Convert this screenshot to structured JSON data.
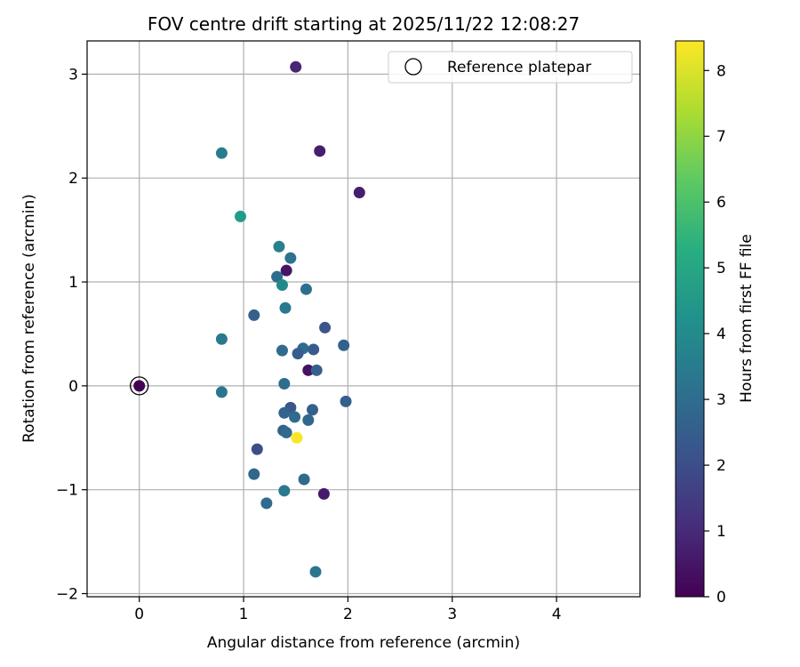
{
  "chart_data": {
    "type": "scatter",
    "title": "FOV centre drift starting at 2025/11/22 12:08:27",
    "xlabel": "Angular distance from reference (arcmin)",
    "ylabel": "Rotation from reference (arcmin)",
    "xlim": [
      -0.5,
      4.8
    ],
    "ylim": [
      -2.03,
      3.32
    ],
    "xticks": [
      0,
      1,
      2,
      3,
      4
    ],
    "yticks": [
      -2,
      -1,
      0,
      1,
      2,
      3
    ],
    "grid": true,
    "legend": {
      "position": "top-right",
      "entries": [
        "Reference platepar"
      ]
    },
    "colorbar": {
      "label": "Hours from first FF file",
      "min": 0,
      "max": 8.45,
      "ticks": [
        0,
        1,
        2,
        3,
        4,
        5,
        6,
        7,
        8
      ],
      "colormap": "viridis"
    },
    "reference": {
      "x": 0,
      "y": 0,
      "hours": 0,
      "label": "Reference platepar"
    },
    "points": [
      {
        "x": 1.5,
        "y": 3.07,
        "hours": 0.9
      },
      {
        "x": 1.73,
        "y": 2.26,
        "hours": 0.7
      },
      {
        "x": 0.79,
        "y": 2.24,
        "hours": 3.5
      },
      {
        "x": 2.11,
        "y": 1.86,
        "hours": 0.7
      },
      {
        "x": 0.97,
        "y": 1.63,
        "hours": 4.6
      },
      {
        "x": 1.34,
        "y": 1.34,
        "hours": 3.6
      },
      {
        "x": 1.45,
        "y": 1.23,
        "hours": 3.2
      },
      {
        "x": 1.41,
        "y": 1.11,
        "hours": 0.5
      },
      {
        "x": 1.32,
        "y": 1.05,
        "hours": 3.0
      },
      {
        "x": 1.37,
        "y": 0.97,
        "hours": 4.0
      },
      {
        "x": 1.6,
        "y": 0.93,
        "hours": 3.1
      },
      {
        "x": 1.4,
        "y": 0.75,
        "hours": 3.4
      },
      {
        "x": 1.1,
        "y": 0.68,
        "hours": 2.6
      },
      {
        "x": 1.78,
        "y": 0.56,
        "hours": 2.2
      },
      {
        "x": 0.79,
        "y": 0.45,
        "hours": 3.4
      },
      {
        "x": 1.96,
        "y": 0.39,
        "hours": 2.6
      },
      {
        "x": 1.57,
        "y": 0.36,
        "hours": 2.9
      },
      {
        "x": 1.37,
        "y": 0.34,
        "hours": 2.9
      },
      {
        "x": 1.67,
        "y": 0.35,
        "hours": 2.4
      },
      {
        "x": 1.52,
        "y": 0.31,
        "hours": 2.5
      },
      {
        "x": 1.62,
        "y": 0.15,
        "hours": 0.4
      },
      {
        "x": 1.7,
        "y": 0.15,
        "hours": 2.6
      },
      {
        "x": 1.39,
        "y": 0.02,
        "hours": 3.0
      },
      {
        "x": 0.79,
        "y": -0.06,
        "hours": 3.3
      },
      {
        "x": 1.98,
        "y": -0.15,
        "hours": 2.6
      },
      {
        "x": 1.45,
        "y": -0.21,
        "hours": 2.3
      },
      {
        "x": 1.66,
        "y": -0.23,
        "hours": 2.6
      },
      {
        "x": 1.39,
        "y": -0.26,
        "hours": 2.7
      },
      {
        "x": 1.49,
        "y": -0.3,
        "hours": 2.9
      },
      {
        "x": 1.62,
        "y": -0.33,
        "hours": 2.8
      },
      {
        "x": 1.38,
        "y": -0.43,
        "hours": 2.6
      },
      {
        "x": 1.41,
        "y": -0.45,
        "hours": 2.9
      },
      {
        "x": 1.51,
        "y": -0.5,
        "hours": 8.4
      },
      {
        "x": 1.13,
        "y": -0.61,
        "hours": 2.0
      },
      {
        "x": 1.1,
        "y": -0.85,
        "hours": 2.8
      },
      {
        "x": 1.58,
        "y": -0.9,
        "hours": 2.9
      },
      {
        "x": 1.39,
        "y": -1.01,
        "hours": 3.4
      },
      {
        "x": 1.77,
        "y": -1.04,
        "hours": 0.6
      },
      {
        "x": 1.22,
        "y": -1.13,
        "hours": 2.9
      },
      {
        "x": 1.69,
        "y": -1.79,
        "hours": 3.3
      }
    ]
  }
}
